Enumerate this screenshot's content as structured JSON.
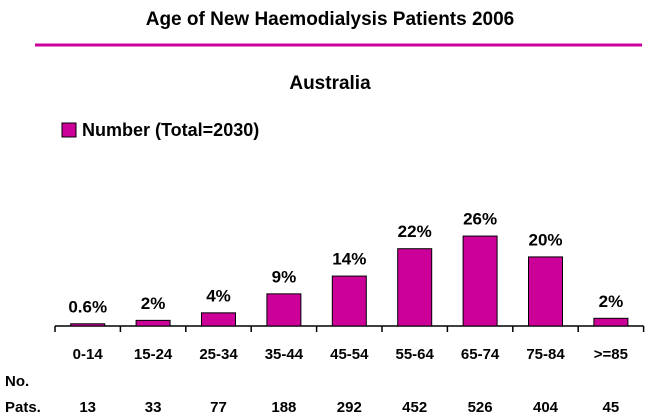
{
  "chart_data": {
    "type": "bar",
    "title": "Age of New Haemodialysis Patients 2006",
    "subtitle": "Australia",
    "categories": [
      "0-14",
      "15-24",
      "25-34",
      "35-44",
      "45-54",
      "55-64",
      "65-74",
      "75-84",
      ">=85"
    ],
    "series": [
      {
        "name": "Number  (Total=2030)",
        "color": "#cc0099",
        "values": [
          13,
          33,
          77,
          188,
          292,
          452,
          526,
          404,
          45
        ],
        "value_labels": [
          "0.6%",
          "2%",
          "4%",
          "9%",
          "14%",
          "22%",
          "26%",
          "20%",
          "2%"
        ]
      }
    ],
    "table_label": [
      "No.",
      "Pats."
    ]
  }
}
